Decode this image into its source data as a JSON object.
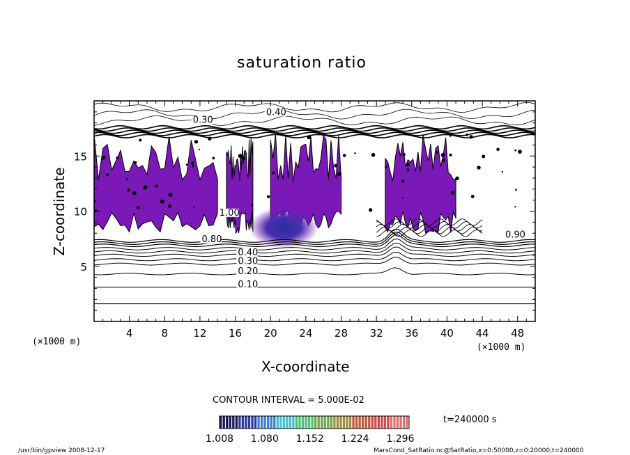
{
  "chart_data": {
    "type": "heatmap",
    "title": "saturation ratio",
    "xlabel": "X-coordinate",
    "ylabel": "Z-coordinate",
    "x_unit": "(×1000 m)",
    "y_unit": "(×1000 m)",
    "xlim": [
      0,
      50
    ],
    "ylim": [
      0,
      20
    ],
    "x_ticks": [
      4,
      8,
      12,
      16,
      20,
      24,
      28,
      32,
      36,
      40,
      44,
      48
    ],
    "y_ticks": [
      5,
      10,
      15
    ],
    "contour_interval_text": "CONTOUR INTERVAL = 5.000E-02",
    "time_label": "t=240000 s",
    "colorbar": {
      "ticks": [
        "1.008",
        "1.080",
        "1.152",
        "1.224",
        "1.296"
      ],
      "range": [
        1.008,
        1.31
      ],
      "colors": [
        "#1a1a5e",
        "#2a3aa0",
        "#3f7fd8",
        "#47c0d0",
        "#4fbf7a",
        "#6ea84a",
        "#a08f3a",
        "#c05a3a",
        "#d04a4a",
        "#e27070"
      ]
    },
    "fill_color": "#7a18b8",
    "contour_labels": [
      {
        "text": "0.40",
        "x": 19.5,
        "z": 18.7
      },
      {
        "text": "0.30",
        "x": 11.2,
        "z": 18.0
      },
      {
        "text": "0.10",
        "x": 16.3,
        "z": 3.1
      },
      {
        "text": "0.20",
        "x": 16.3,
        "z": 4.3
      },
      {
        "text": "0.30",
        "x": 16.3,
        "z": 5.2
      },
      {
        "text": "0.40",
        "x": 16.3,
        "z": 6.0
      },
      {
        "text": "0.80",
        "x": 12.2,
        "z": 7.2
      },
      {
        "text": "0.90",
        "x": 46.6,
        "z": 7.6
      },
      {
        "text": "1.00",
        "x": 14.2,
        "z": 9.6
      }
    ],
    "supersaturated_regions_x_km": [
      [
        0,
        14
      ],
      [
        15,
        18
      ],
      [
        20,
        28
      ],
      [
        33,
        41
      ]
    ],
    "supersaturated_z_range_km": [
      8,
      17
    ],
    "max_region": {
      "x": 21.5,
      "z": 8.5
    }
  },
  "footer": {
    "left": "/usr/bin/gpview   2008-12-17",
    "right": "MarsCond_SatRatio.nc@SatRatio,x=0:50000,z=0:20000,t=240000"
  }
}
